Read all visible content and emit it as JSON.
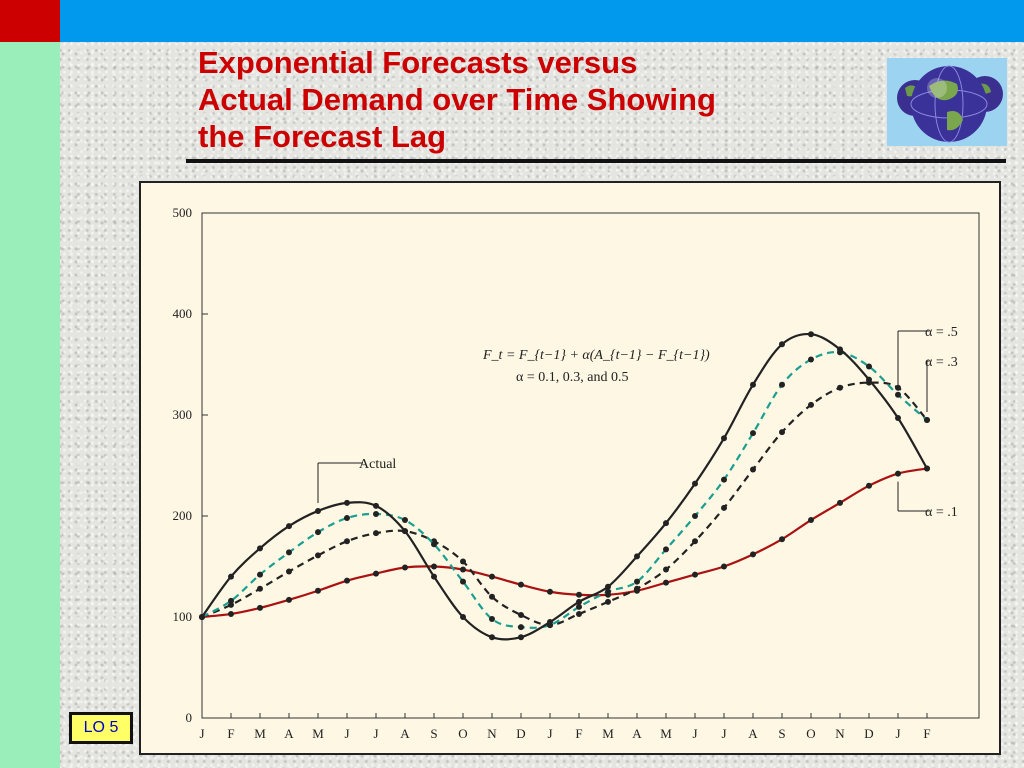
{
  "title_lines": [
    "Exponential Forecasts versus",
    "Actual Demand over Time Showing",
    "the Forecast Lag"
  ],
  "badge": "LO 5",
  "icons": {
    "logo": "globe-icon"
  },
  "colors": {
    "title": "#cc0000",
    "topbar": "#0099ee",
    "corner": "#cc0000",
    "sidebar": "#99eeb9",
    "badge_bg": "#ffff66",
    "badge_text": "#0000cc"
  },
  "chart_data": {
    "type": "line",
    "categories": [
      "J",
      "F",
      "M",
      "A",
      "M",
      "J",
      "J",
      "A",
      "S",
      "O",
      "N",
      "D",
      "J",
      "F",
      "M",
      "A",
      "M",
      "J",
      "J",
      "A",
      "S",
      "O",
      "N",
      "D",
      "J",
      "F"
    ],
    "ylim": [
      0,
      500
    ],
    "yticks": [
      0,
      100,
      200,
      300,
      400,
      500
    ],
    "grid": false,
    "formula_lines": [
      "F_t = F_{t−1} + α(A_{t−1} − F_{t−1})",
      "α = 0.1, 0.3, and 0.5"
    ],
    "series": [
      {
        "name": "Actual",
        "color": "#222222",
        "dash": "solid",
        "marker_at_half_steps": true,
        "values": [
          100,
          140,
          168,
          190,
          205,
          213,
          210,
          185,
          140,
          100,
          80,
          80,
          95,
          115,
          130,
          160,
          193,
          232,
          277,
          330,
          370,
          380,
          365,
          335,
          297,
          247
        ]
      },
      {
        "name": "α = .5",
        "color": "#1a9e8f",
        "dash": "dashed",
        "values": [
          100,
          116,
          142,
          164,
          184,
          198,
          202,
          196,
          172,
          135,
          98,
          90,
          92,
          110,
          125,
          135,
          167,
          200,
          236,
          282,
          330,
          355,
          362,
          348,
          320,
          295
        ]
      },
      {
        "name": "α = .3",
        "color": "#222222",
        "dash": "dashed",
        "values": [
          100,
          112,
          128,
          145,
          161,
          175,
          183,
          185,
          175,
          155,
          120,
          102,
          92,
          103,
          115,
          128,
          147,
          175,
          208,
          246,
          283,
          310,
          327,
          332,
          327,
          295
        ]
      },
      {
        "name": "α = .1",
        "color": "#aa1111",
        "dash": "solid",
        "values": [
          100,
          103,
          109,
          117,
          126,
          136,
          143,
          149,
          150,
          147,
          140,
          132,
          125,
          122,
          122,
          126,
          134,
          142,
          150,
          162,
          177,
          196,
          213,
          230,
          242,
          247
        ]
      }
    ],
    "annotations": [
      {
        "text": "Actual",
        "series": "Actual"
      },
      {
        "text": "α = .5",
        "series": "α = .5"
      },
      {
        "text": "α = .3",
        "series": "α = .3"
      },
      {
        "text": "α = .1",
        "series": "α = .1"
      }
    ]
  }
}
